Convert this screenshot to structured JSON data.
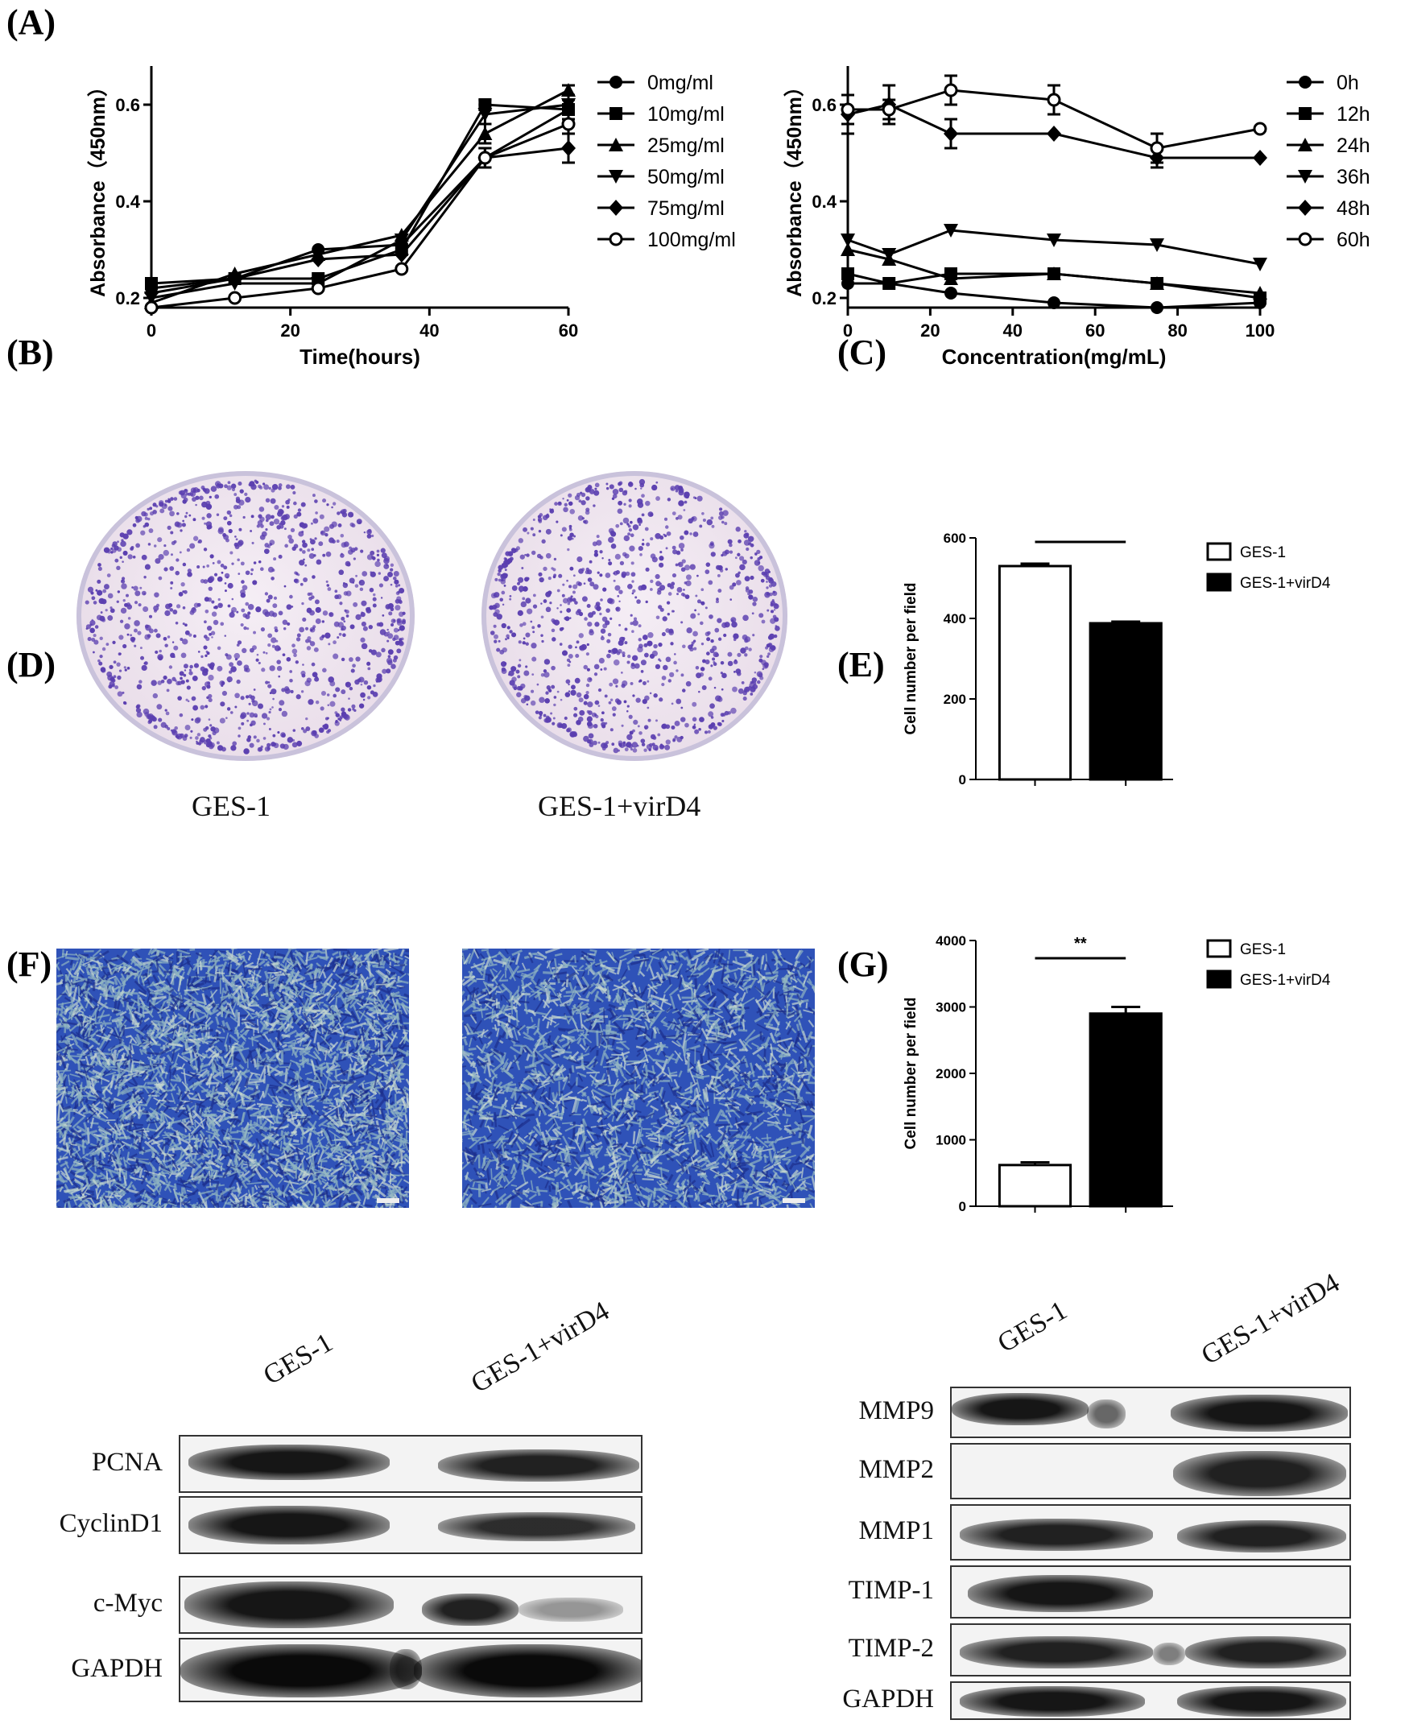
{
  "panels": {
    "A": "(A)",
    "B": "(B)",
    "C": "(C)",
    "D": "(D)",
    "E": "(E)",
    "F": "(F)",
    "G": "(G)"
  },
  "chart_data": [
    {
      "id": "A-left",
      "type": "line",
      "xlabel": "Time(hours)",
      "ylabel": "Absorbance（450nm）",
      "xlim": [
        0,
        60
      ],
      "ylim": [
        0.18,
        0.68
      ],
      "xticks": [
        0,
        20,
        40,
        60
      ],
      "yticks": [
        0.2,
        0.4,
        0.6
      ],
      "x": [
        0,
        12,
        24,
        36,
        48,
        60
      ],
      "legend_position": "right",
      "series": [
        {
          "name": "0mg/ml",
          "marker": "circle",
          "values": [
            0.22,
            0.24,
            0.3,
            0.31,
            0.49,
            0.59
          ],
          "err": [
            0,
            0,
            0,
            0,
            0.02,
            0.02
          ]
        },
        {
          "name": "10mg/ml",
          "marker": "square",
          "values": [
            0.23,
            0.24,
            0.24,
            0.3,
            0.6,
            0.59
          ],
          "err": [
            0,
            0,
            0,
            0,
            0.01,
            0.02
          ]
        },
        {
          "name": "25mg/ml",
          "marker": "triangle-up",
          "values": [
            0.19,
            0.25,
            0.29,
            0.33,
            0.54,
            0.63
          ],
          "err": [
            0,
            0,
            0,
            0,
            0.02,
            0.01
          ]
        },
        {
          "name": "50mg/ml",
          "marker": "triangle-down",
          "values": [
            0.2,
            0.23,
            0.23,
            0.32,
            0.58,
            0.6
          ],
          "err": [
            0,
            0,
            0,
            0,
            0.02,
            0.02
          ]
        },
        {
          "name": "75mg/ml",
          "marker": "diamond",
          "values": [
            0.21,
            0.24,
            0.28,
            0.29,
            0.49,
            0.51
          ],
          "err": [
            0,
            0,
            0,
            0,
            0.02,
            0.03
          ]
        },
        {
          "name": "100mg/ml",
          "marker": "circle-open",
          "values": [
            0.18,
            0.2,
            0.22,
            0.26,
            0.49,
            0.56
          ],
          "err": [
            0,
            0,
            0,
            0,
            0.02,
            0.02
          ]
        }
      ]
    },
    {
      "id": "A-right",
      "type": "line",
      "xlabel": "Concentration(mg/mL)",
      "ylabel": "Absorbance（450nm）",
      "xlim": [
        0,
        100
      ],
      "ylim": [
        0.18,
        0.68
      ],
      "xticks": [
        0,
        20,
        40,
        60,
        80,
        100
      ],
      "yticks": [
        0.2,
        0.4,
        0.6
      ],
      "x": [
        0,
        10,
        25,
        50,
        75,
        100
      ],
      "legend_position": "right",
      "series": [
        {
          "name": "0h",
          "marker": "circle",
          "values": [
            0.23,
            0.23,
            0.21,
            0.19,
            0.18,
            0.19
          ],
          "err": [
            0,
            0,
            0,
            0,
            0,
            0
          ]
        },
        {
          "name": "12h",
          "marker": "square",
          "values": [
            0.25,
            0.23,
            0.25,
            0.25,
            0.23,
            0.2
          ],
          "err": [
            0,
            0,
            0,
            0,
            0,
            0
          ]
        },
        {
          "name": "24h",
          "marker": "triangle-up",
          "values": [
            0.3,
            0.28,
            0.24,
            0.25,
            0.23,
            0.21
          ],
          "err": [
            0,
            0,
            0,
            0,
            0,
            0
          ]
        },
        {
          "name": "36h",
          "marker": "triangle-down",
          "values": [
            0.32,
            0.29,
            0.34,
            0.32,
            0.31,
            0.27
          ],
          "err": [
            0,
            0,
            0,
            0,
            0,
            0
          ]
        },
        {
          "name": "48h",
          "marker": "diamond",
          "values": [
            0.58,
            0.6,
            0.54,
            0.54,
            0.49,
            0.49
          ],
          "err": [
            0.04,
            0.04,
            0.03,
            0,
            0.02,
            0
          ]
        },
        {
          "name": "60h",
          "marker": "circle-open",
          "values": [
            0.59,
            0.59,
            0.63,
            0.61,
            0.51,
            0.55
          ],
          "err": [
            0.03,
            0.02,
            0.03,
            0.03,
            0.03,
            0
          ]
        }
      ]
    },
    {
      "id": "C",
      "type": "bar",
      "ylabel": "Cell number per field",
      "ylim": [
        0,
        600
      ],
      "yticks": [
        0,
        200,
        400,
        600
      ],
      "categories": [
        "GES-1",
        "GES-1+virD4"
      ],
      "values": [
        530,
        388
      ],
      "err": [
        6,
        4
      ],
      "colors": [
        "#ffffff",
        "#000000"
      ],
      "significance": "**",
      "legend_position": "top-right"
    },
    {
      "id": "E",
      "type": "bar",
      "ylabel": "Cell number per field",
      "ylim": [
        0,
        4000
      ],
      "yticks": [
        0,
        1000,
        2000,
        3000,
        4000
      ],
      "categories": [
        "GES-1",
        "GES-1+virD4"
      ],
      "values": [
        620,
        2900
      ],
      "err": [
        40,
        100
      ],
      "colors": [
        "#ffffff",
        "#000000"
      ],
      "significance": "**",
      "legend_position": "top-right"
    }
  ],
  "panel_B": {
    "labels": [
      "GES-1",
      "GES-1+virD4"
    ]
  },
  "panel_F": {
    "lanes": [
      "GES-1",
      "GES-1+virD4"
    ],
    "proteins": [
      "PCNA",
      "CyclinD1",
      "c-Myc",
      "GAPDH"
    ]
  },
  "panel_G": {
    "lanes": [
      "GES-1",
      "GES-1+virD4"
    ],
    "proteins": [
      "MMP9",
      "MMP2",
      "MMP1",
      "TIMP-1",
      "TIMP-2",
      "GAPDH"
    ]
  },
  "colors": {
    "plate_stain": "#5b3fb0",
    "plate_bg": "#e9dde9",
    "micro_bg": "#2f52b8"
  }
}
